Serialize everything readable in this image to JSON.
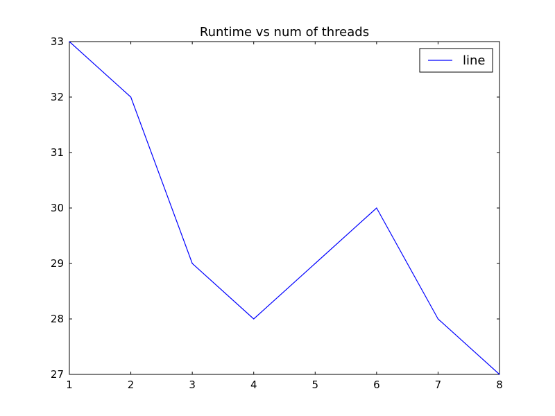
{
  "chart_data": {
    "type": "line",
    "title": "Runtime vs num of threads",
    "xlabel": "",
    "ylabel": "",
    "x": [
      1,
      2,
      3,
      4,
      5,
      6,
      7,
      8
    ],
    "series": [
      {
        "name": "line",
        "values": [
          33,
          32,
          29,
          28,
          29,
          30,
          28,
          27
        ],
        "color": "#0000ff"
      }
    ],
    "xlim": [
      1,
      8
    ],
    "ylim": [
      27,
      33
    ],
    "xticks": [
      1,
      2,
      3,
      4,
      5,
      6,
      7,
      8
    ],
    "yticks": [
      27,
      28,
      29,
      30,
      31,
      32,
      33
    ],
    "grid": false,
    "legend_position": "top-right"
  }
}
